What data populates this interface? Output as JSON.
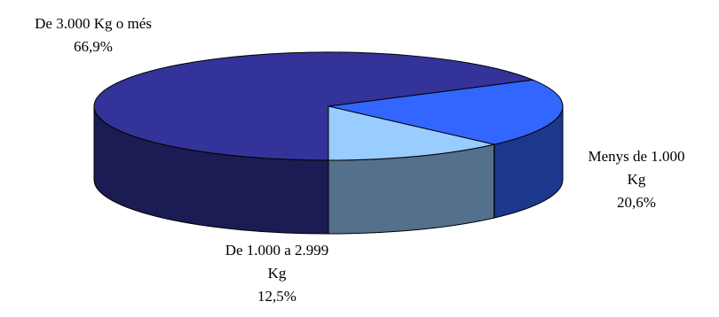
{
  "chart_data": {
    "type": "pie",
    "style": "3d",
    "title": "",
    "slices": [
      {
        "label_lines": [
          "De 3.000 Kg o més"
        ],
        "label": "De 3.000 Kg o més",
        "value": 66.9,
        "value_label": "66,9%",
        "color": "#333399"
      },
      {
        "label_lines": [
          "Menys de 1.000",
          "Kg"
        ],
        "label": "Menys de 1.000 Kg",
        "value": 20.6,
        "value_label": "20,6%",
        "color": "#3366ff"
      },
      {
        "label_lines": [
          "De 1.000 a 2.999",
          "Kg"
        ],
        "label": "De 1.000 a 2.999 Kg",
        "value": 12.5,
        "value_label": "12,5%",
        "color": "#99ccff"
      }
    ]
  }
}
